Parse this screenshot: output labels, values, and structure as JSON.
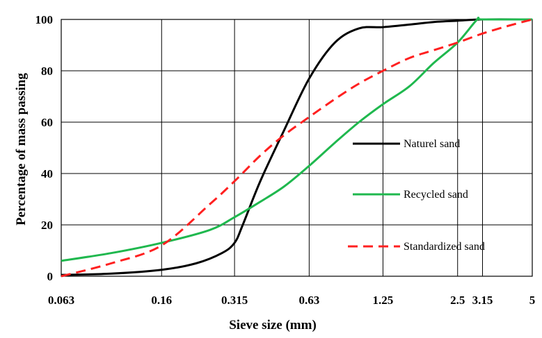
{
  "chart_data": {
    "type": "line",
    "xlabel": "Sieve size (mm)",
    "ylabel": "Percentage of mass passing",
    "x_scale": "log",
    "xlim": [
      0.063,
      5
    ],
    "ylim": [
      0,
      100
    ],
    "x_ticks": [
      0.063,
      0.16,
      0.315,
      0.63,
      1.25,
      2.5,
      3.15,
      5
    ],
    "x_tick_labels": [
      "0.063",
      "0.16",
      "0.315",
      "0.63",
      "1.25",
      "2.5",
      "3.15",
      "5"
    ],
    "y_ticks": [
      0,
      20,
      40,
      60,
      80,
      100
    ],
    "y_tick_labels": [
      "0",
      "20",
      "40",
      "60",
      "80",
      "100"
    ],
    "grid": true,
    "legend_position": "right",
    "series": [
      {
        "name": "Naturel sand",
        "color": "#000000",
        "line_style": "solid",
        "points": [
          [
            0.063,
            0.5
          ],
          [
            0.1,
            1
          ],
          [
            0.16,
            2.5
          ],
          [
            0.22,
            5
          ],
          [
            0.28,
            9
          ],
          [
            0.315,
            13
          ],
          [
            0.34,
            20
          ],
          [
            0.4,
            37
          ],
          [
            0.5,
            57
          ],
          [
            0.63,
            77
          ],
          [
            0.8,
            91
          ],
          [
            1.0,
            96.5
          ],
          [
            1.25,
            97
          ],
          [
            1.6,
            98
          ],
          [
            2.0,
            99
          ],
          [
            2.5,
            99.5
          ],
          [
            3.15,
            100
          ],
          [
            5,
            100
          ]
        ]
      },
      {
        "name": "Recycled sand",
        "color": "#1fb84e",
        "line_style": "solid",
        "points": [
          [
            0.063,
            6
          ],
          [
            0.1,
            9
          ],
          [
            0.16,
            13
          ],
          [
            0.25,
            18
          ],
          [
            0.315,
            23
          ],
          [
            0.4,
            29
          ],
          [
            0.5,
            35
          ],
          [
            0.63,
            43
          ],
          [
            0.8,
            52
          ],
          [
            1.0,
            60
          ],
          [
            1.25,
            67
          ],
          [
            1.6,
            74
          ],
          [
            2.0,
            83
          ],
          [
            2.5,
            91
          ],
          [
            3.0,
            100
          ],
          [
            3.15,
            100
          ],
          [
            5,
            100
          ]
        ]
      },
      {
        "name": "Standardized sand",
        "color": "#ff2020",
        "line_style": "dashed",
        "points": [
          [
            0.063,
            0
          ],
          [
            0.1,
            5
          ],
          [
            0.16,
            12
          ],
          [
            0.25,
            28
          ],
          [
            0.315,
            37
          ],
          [
            0.4,
            47
          ],
          [
            0.5,
            55
          ],
          [
            0.63,
            62
          ],
          [
            0.8,
            69
          ],
          [
            1.0,
            75
          ],
          [
            1.25,
            80
          ],
          [
            1.6,
            85
          ],
          [
            2.0,
            88
          ],
          [
            2.5,
            91
          ],
          [
            3.15,
            94.5
          ],
          [
            4.0,
            97.5
          ],
          [
            5,
            100
          ]
        ]
      }
    ]
  }
}
